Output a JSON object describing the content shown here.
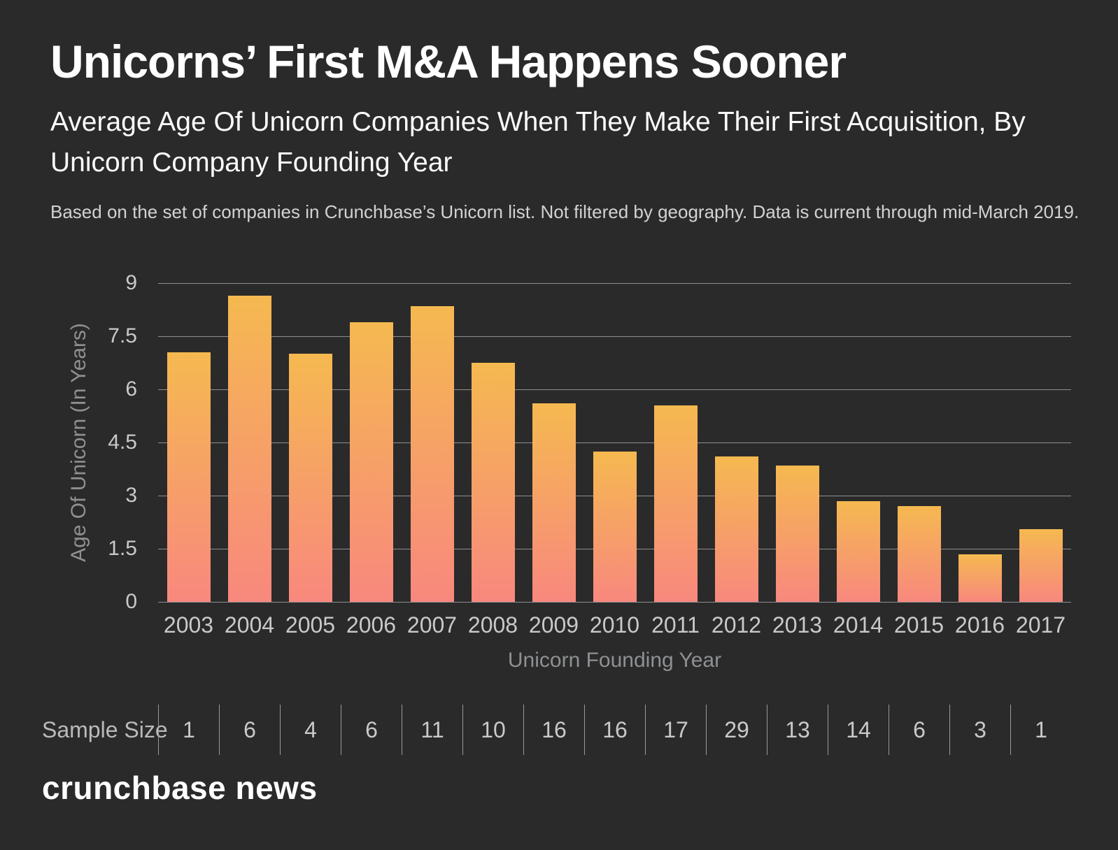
{
  "header": {
    "title": "Unicorns’ First M&A Happens Sooner",
    "subtitle": "Average Age Of Unicorn Companies When They Make Their First Acquisition, By Unicorn Company Founding Year",
    "note": "Based on the set of companies in Crunchbase’s Unicorn list. Not filtered by geography. Data is current through mid-March 2019."
  },
  "chart_data": {
    "type": "bar",
    "title": "Unicorns’ First M&A Happens Sooner",
    "subtitle": "Average Age Of Unicorn Companies When They Make Their First Acquisition, By Unicorn Company Founding Year",
    "categories": [
      "2003",
      "2004",
      "2005",
      "2006",
      "2007",
      "2008",
      "2009",
      "2010",
      "2011",
      "2012",
      "2013",
      "2014",
      "2015",
      "2016",
      "2017"
    ],
    "values": [
      7.05,
      8.65,
      7.0,
      7.9,
      8.35,
      6.75,
      5.6,
      4.25,
      5.55,
      4.1,
      3.85,
      2.85,
      2.7,
      1.35,
      2.05
    ],
    "sample_sizes": [
      1,
      6,
      4,
      6,
      11,
      10,
      16,
      16,
      17,
      29,
      13,
      14,
      6,
      3,
      1
    ],
    "xlabel": "Unicorn Founding Year",
    "ylabel": "Age Of Unicorn (In Years)",
    "yticks": [
      0,
      1.5,
      3,
      4.5,
      6,
      7.5,
      9
    ],
    "ylim": [
      0,
      9
    ],
    "grid": true,
    "legend": "none",
    "bar_gradient": {
      "top": "#f5b950",
      "bottom": "#f8887e"
    }
  },
  "sample_row": {
    "label": "Sample Size"
  },
  "footer": {
    "logo": "crunchbase news"
  },
  "colors": {
    "background": "#2a2a2b",
    "gridline": "#8e8f90",
    "divider": "#98999b",
    "title_text": "#ffffff",
    "tick_text": "#c9c9ca",
    "axis_title_text": "#8e9092",
    "note_text": "#d2d2d2"
  }
}
